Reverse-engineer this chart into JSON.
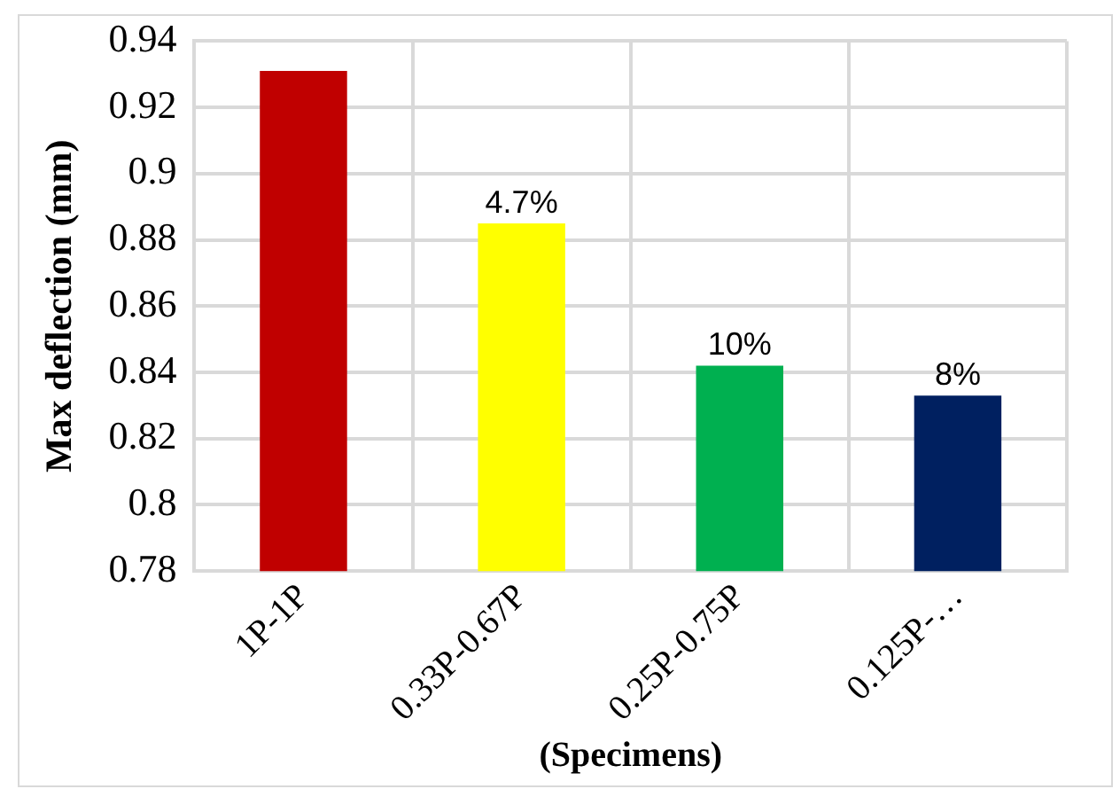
{
  "chart_data": {
    "type": "bar",
    "xlabel": "(Specimens)",
    "ylabel": "Max deflection (mm)",
    "categories": [
      "1P-1P",
      "0.33P-0.67P",
      "0.25P-0.75P",
      "0.125P-…"
    ],
    "values": [
      0.931,
      0.885,
      0.842,
      0.833
    ],
    "colors": [
      "#c00000",
      "#ffff00",
      "#00b050",
      "#002060"
    ],
    "ylim": [
      0.78,
      0.94
    ],
    "yticks": [
      0.78,
      0.8,
      0.82,
      0.84,
      0.86,
      0.88,
      0.9,
      0.92,
      0.94
    ],
    "grid": true,
    "annotations": [
      {
        "text": "4.7%",
        "x": "0.33P-0.67P",
        "y": 0.885
      },
      {
        "text": "10%",
        "x": "0.25P-0.75P",
        "y": 0.842
      },
      {
        "text": "8%",
        "x": "0.125P-…",
        "y": 0.833
      }
    ]
  }
}
